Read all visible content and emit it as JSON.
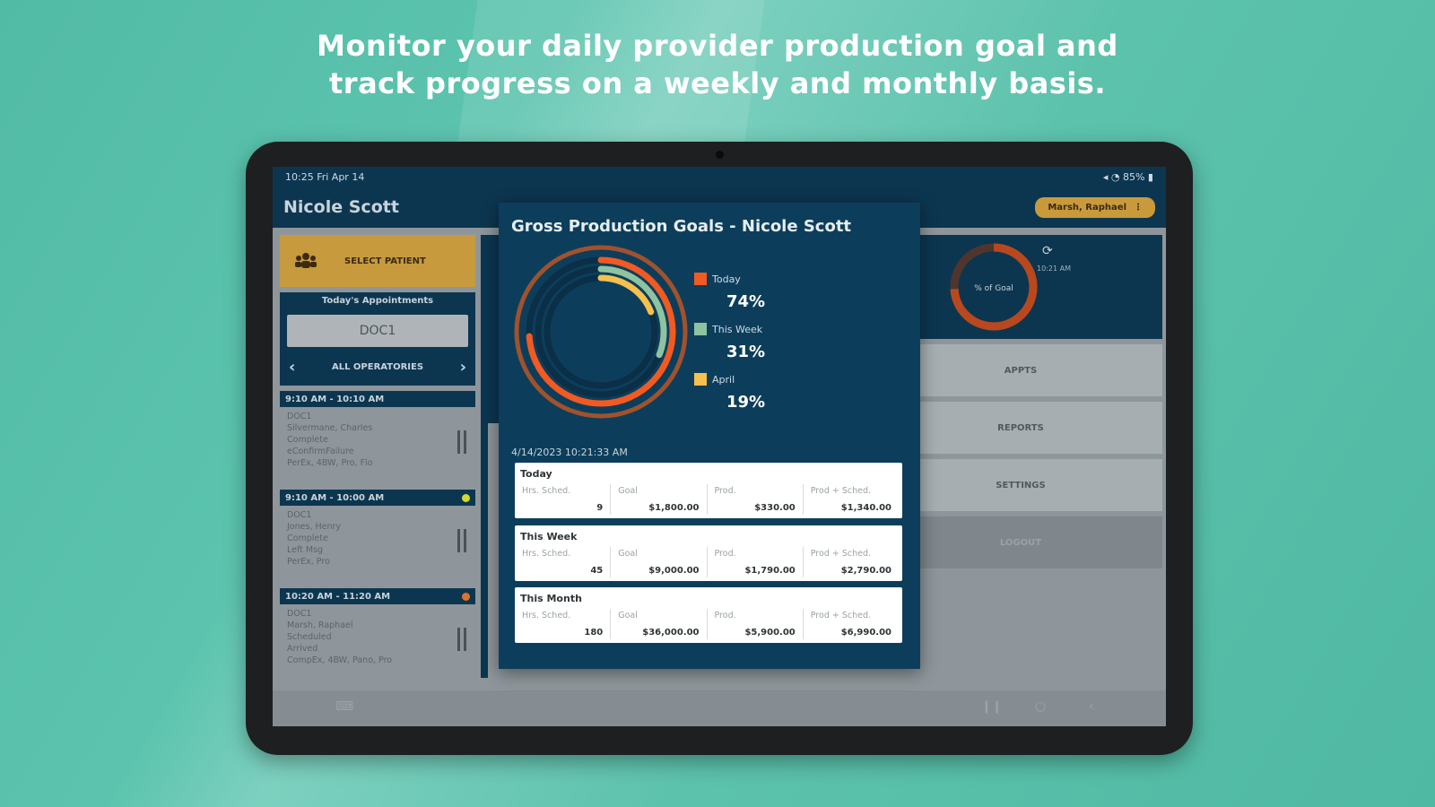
{
  "headline": {
    "line1": "Monitor your daily provider production goal and",
    "line2": "track progress on a weekly and monthly basis."
  },
  "status_bar": {
    "time": "10:25 Fri Apr 14",
    "battery": "85%"
  },
  "app_bar": {
    "title": "Nicole Scott",
    "user": "Marsh, Raphael"
  },
  "left_panel": {
    "select_patient": "SELECT PATIENT",
    "appointments_heading": "Today's Appointments",
    "doctor": "DOC1",
    "operatories": "ALL OPERATORIES",
    "appointments": [
      {
        "time": "9:10 AM - 10:10 AM",
        "dot_color": "#0c3650",
        "lines": [
          "DOC1",
          "Silvermane, Charles",
          "Complete",
          "eConfirmFailure",
          "PerEx, 4BW, Pro, Flo"
        ]
      },
      {
        "time": "9:10 AM - 10:00 AM",
        "dot_color": "#d9d72c",
        "lines": [
          "DOC1",
          "Jones, Henry",
          "Complete",
          "Left Msg",
          "PerEx, Pro"
        ]
      },
      {
        "time": "10:20 AM - 11:20 AM",
        "dot_color": "#e0712b",
        "lines": [
          "DOC1",
          "Marsh, Raphael",
          "Scheduled",
          "Arrived",
          "CompEx, 4BW, Pano, Pro"
        ]
      }
    ]
  },
  "right_panel": {
    "gauge_label": "% of Goal",
    "gauge_value": 0.74,
    "refresh_time": "10:21 AM",
    "buttons": [
      "APPTS",
      "REPORTS",
      "SETTINGS",
      "LOGOUT"
    ]
  },
  "colors": {
    "today": "#f15a22",
    "this_week": "#8fc3a0",
    "april": "#f5c04c",
    "ring_track": "#0a2f47",
    "outer_ring": "#a0522d"
  },
  "chart_data": {
    "type": "radial-bar",
    "title": "Gross Production Goals - Nicole Scott",
    "series": [
      {
        "name": "Today",
        "value": 74
      },
      {
        "name": "This Week",
        "value": 31
      },
      {
        "name": "April",
        "value": 19
      }
    ]
  },
  "modal": {
    "title": "Gross Production Goals - Nicole Scott",
    "legend": [
      {
        "name": "Today",
        "percent": "74%"
      },
      {
        "name": "This Week",
        "percent": "31%"
      },
      {
        "name": "April",
        "percent": "19%"
      }
    ],
    "timestamp": "4/14/2023 10:21:33 AM",
    "cards": [
      {
        "title": "Today",
        "cells": [
          {
            "label": "Hrs. Sched.",
            "value": "9"
          },
          {
            "label": "Goal",
            "value": "$1,800.00"
          },
          {
            "label": "Prod.",
            "value": "$330.00"
          },
          {
            "label": "Prod + Sched.",
            "value": "$1,340.00"
          }
        ]
      },
      {
        "title": "This Week",
        "cells": [
          {
            "label": "Hrs. Sched.",
            "value": "45"
          },
          {
            "label": "Goal",
            "value": "$9,000.00"
          },
          {
            "label": "Prod.",
            "value": "$1,790.00"
          },
          {
            "label": "Prod + Sched.",
            "value": "$2,790.00"
          }
        ]
      },
      {
        "title": "This Month",
        "cells": [
          {
            "label": "Hrs. Sched.",
            "value": "180"
          },
          {
            "label": "Goal",
            "value": "$36,000.00"
          },
          {
            "label": "Prod.",
            "value": "$5,900.00"
          },
          {
            "label": "Prod + Sched.",
            "value": "$6,990.00"
          }
        ]
      }
    ]
  }
}
